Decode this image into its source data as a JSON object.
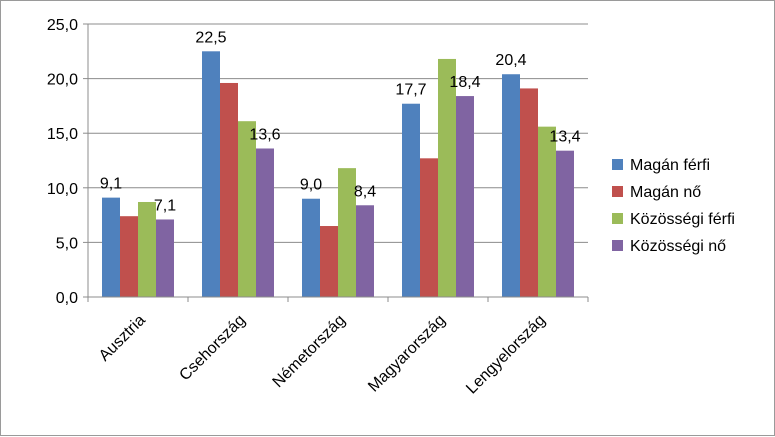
{
  "chart_data": {
    "type": "bar",
    "categories": [
      "Ausztria",
      "Csehország",
      "Németország",
      "Magyarország",
      "Lengyelország"
    ],
    "series": [
      {
        "name": "Magán férfi",
        "color": "#4F81BD",
        "values": [
          9.1,
          22.5,
          9.0,
          17.7,
          20.4
        ],
        "labels": [
          "9,1",
          "22,5",
          "9,0",
          "17,7",
          "20,4"
        ]
      },
      {
        "name": "Magán nő",
        "color": "#C0504D",
        "values": [
          7.4,
          19.6,
          6.5,
          12.7,
          19.1
        ],
        "labels": [
          null,
          null,
          null,
          null,
          null
        ]
      },
      {
        "name": "Közösségi férfi",
        "color": "#9BBB59",
        "values": [
          8.7,
          16.1,
          11.8,
          21.8,
          15.6
        ],
        "labels": [
          null,
          null,
          null,
          null,
          null
        ]
      },
      {
        "name": "Közösségi nő",
        "color": "#8064A2",
        "values": [
          7.1,
          13.6,
          8.4,
          18.4,
          13.4
        ],
        "labels": [
          "7,1",
          "13,6",
          "8,4",
          "18,4",
          "13,4"
        ]
      }
    ],
    "ylim": [
      0,
      25
    ],
    "yticks": [
      "0,0",
      "5,0",
      "10,0",
      "15,0",
      "20,0",
      "25,0"
    ],
    "grid": true,
    "legend": "right"
  }
}
